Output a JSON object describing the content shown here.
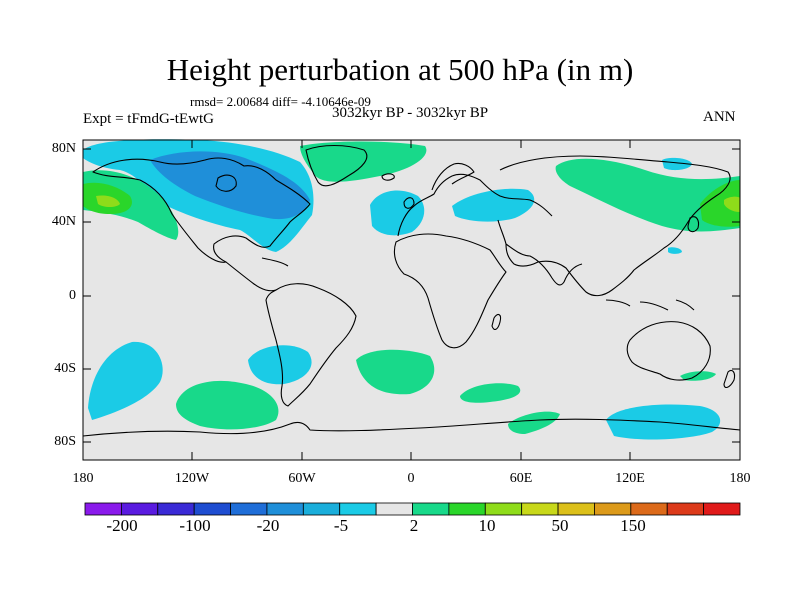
{
  "title": "Height perturbation at 500 hPa (in m)",
  "stats": "rmsd= 2.00684  diff= -4.10646e-09",
  "period": "3032kyr BP - 3032kyr BP",
  "expt": "Expt = tFmdG-tEwtG",
  "season": "ANN",
  "y_ticks": [
    "80N",
    "40N",
    "0",
    "40S",
    "80S"
  ],
  "x_ticks": [
    "180",
    "120W",
    "60W",
    "0",
    "60E",
    "120E",
    "180"
  ],
  "colorbar": {
    "colors": [
      "#8a1aeb",
      "#5a1be0",
      "#3a2ad6",
      "#1e4dd1",
      "#1f6ed8",
      "#1f8fd9",
      "#1aaedb",
      "#1bcbe6",
      "#e6e6e6",
      "#18d98a",
      "#2ad62a",
      "#8fdc1a",
      "#c8d81a",
      "#dcc01a",
      "#dc9a1a",
      "#dc6a1a",
      "#dc3a1a",
      "#e01a1a"
    ],
    "labels": [
      "-200",
      "-100",
      "-20",
      "-5",
      "2",
      "10",
      "50",
      "150"
    ]
  }
}
